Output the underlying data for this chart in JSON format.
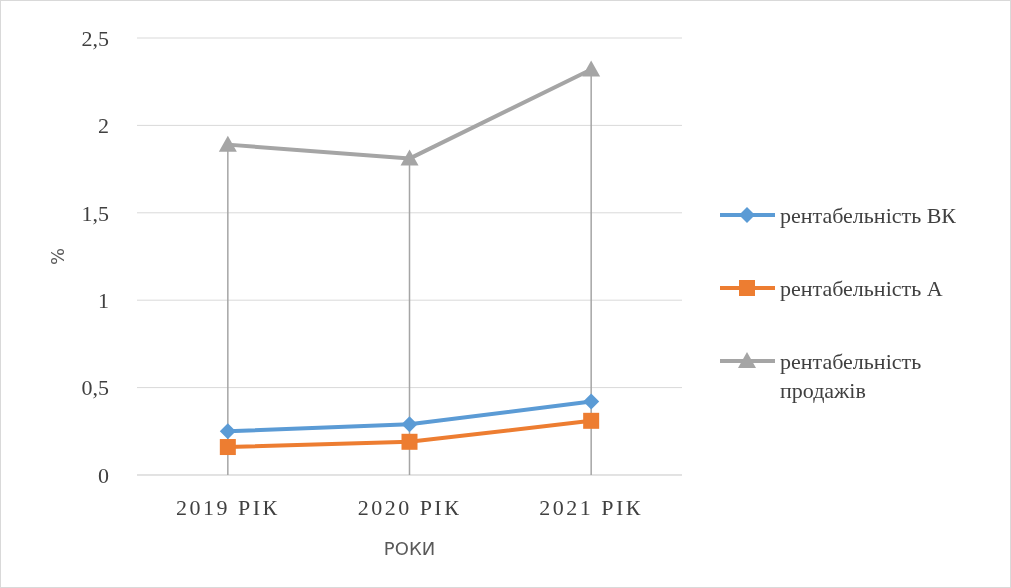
{
  "chart_data": {
    "type": "line",
    "xlabel": "РОКИ",
    "ylabel": "%",
    "categories": [
      "2019 РІК",
      "2020 РІК",
      "2021 РІК"
    ],
    "series": [
      {
        "name": "рентабельність ВК",
        "color": "#5b9bd5",
        "values": [
          0.25,
          0.29,
          0.42
        ],
        "marker": "diamond"
      },
      {
        "name": "рентабельність А",
        "color": "#ed7d31",
        "values": [
          0.16,
          0.19,
          0.31
        ],
        "marker": "square"
      },
      {
        "name": "рентабельність продажів",
        "color": "#a5a5a5",
        "values": [
          1.89,
          1.81,
          2.32
        ],
        "marker": "triangle"
      }
    ],
    "ref_lines": [
      {
        "axis": "x",
        "value": "2019 РІК",
        "color": "#a5a5a5"
      },
      {
        "axis": "x",
        "value": "2020 РІК",
        "color": "#a5a5a5"
      },
      {
        "axis": "x",
        "value": "2021 РІК",
        "color": "#a5a5a5"
      }
    ],
    "ylim": [
      0,
      2.5
    ],
    "yticks": [
      0,
      {
        "value": 0.5,
        "label": "0,5"
      },
      1,
      {
        "value": 1.5,
        "label": "1,5"
      },
      2,
      {
        "value": 2.5,
        "label": "2,5"
      }
    ],
    "grid": "y",
    "legend": "right",
    "line_style": "solid"
  }
}
